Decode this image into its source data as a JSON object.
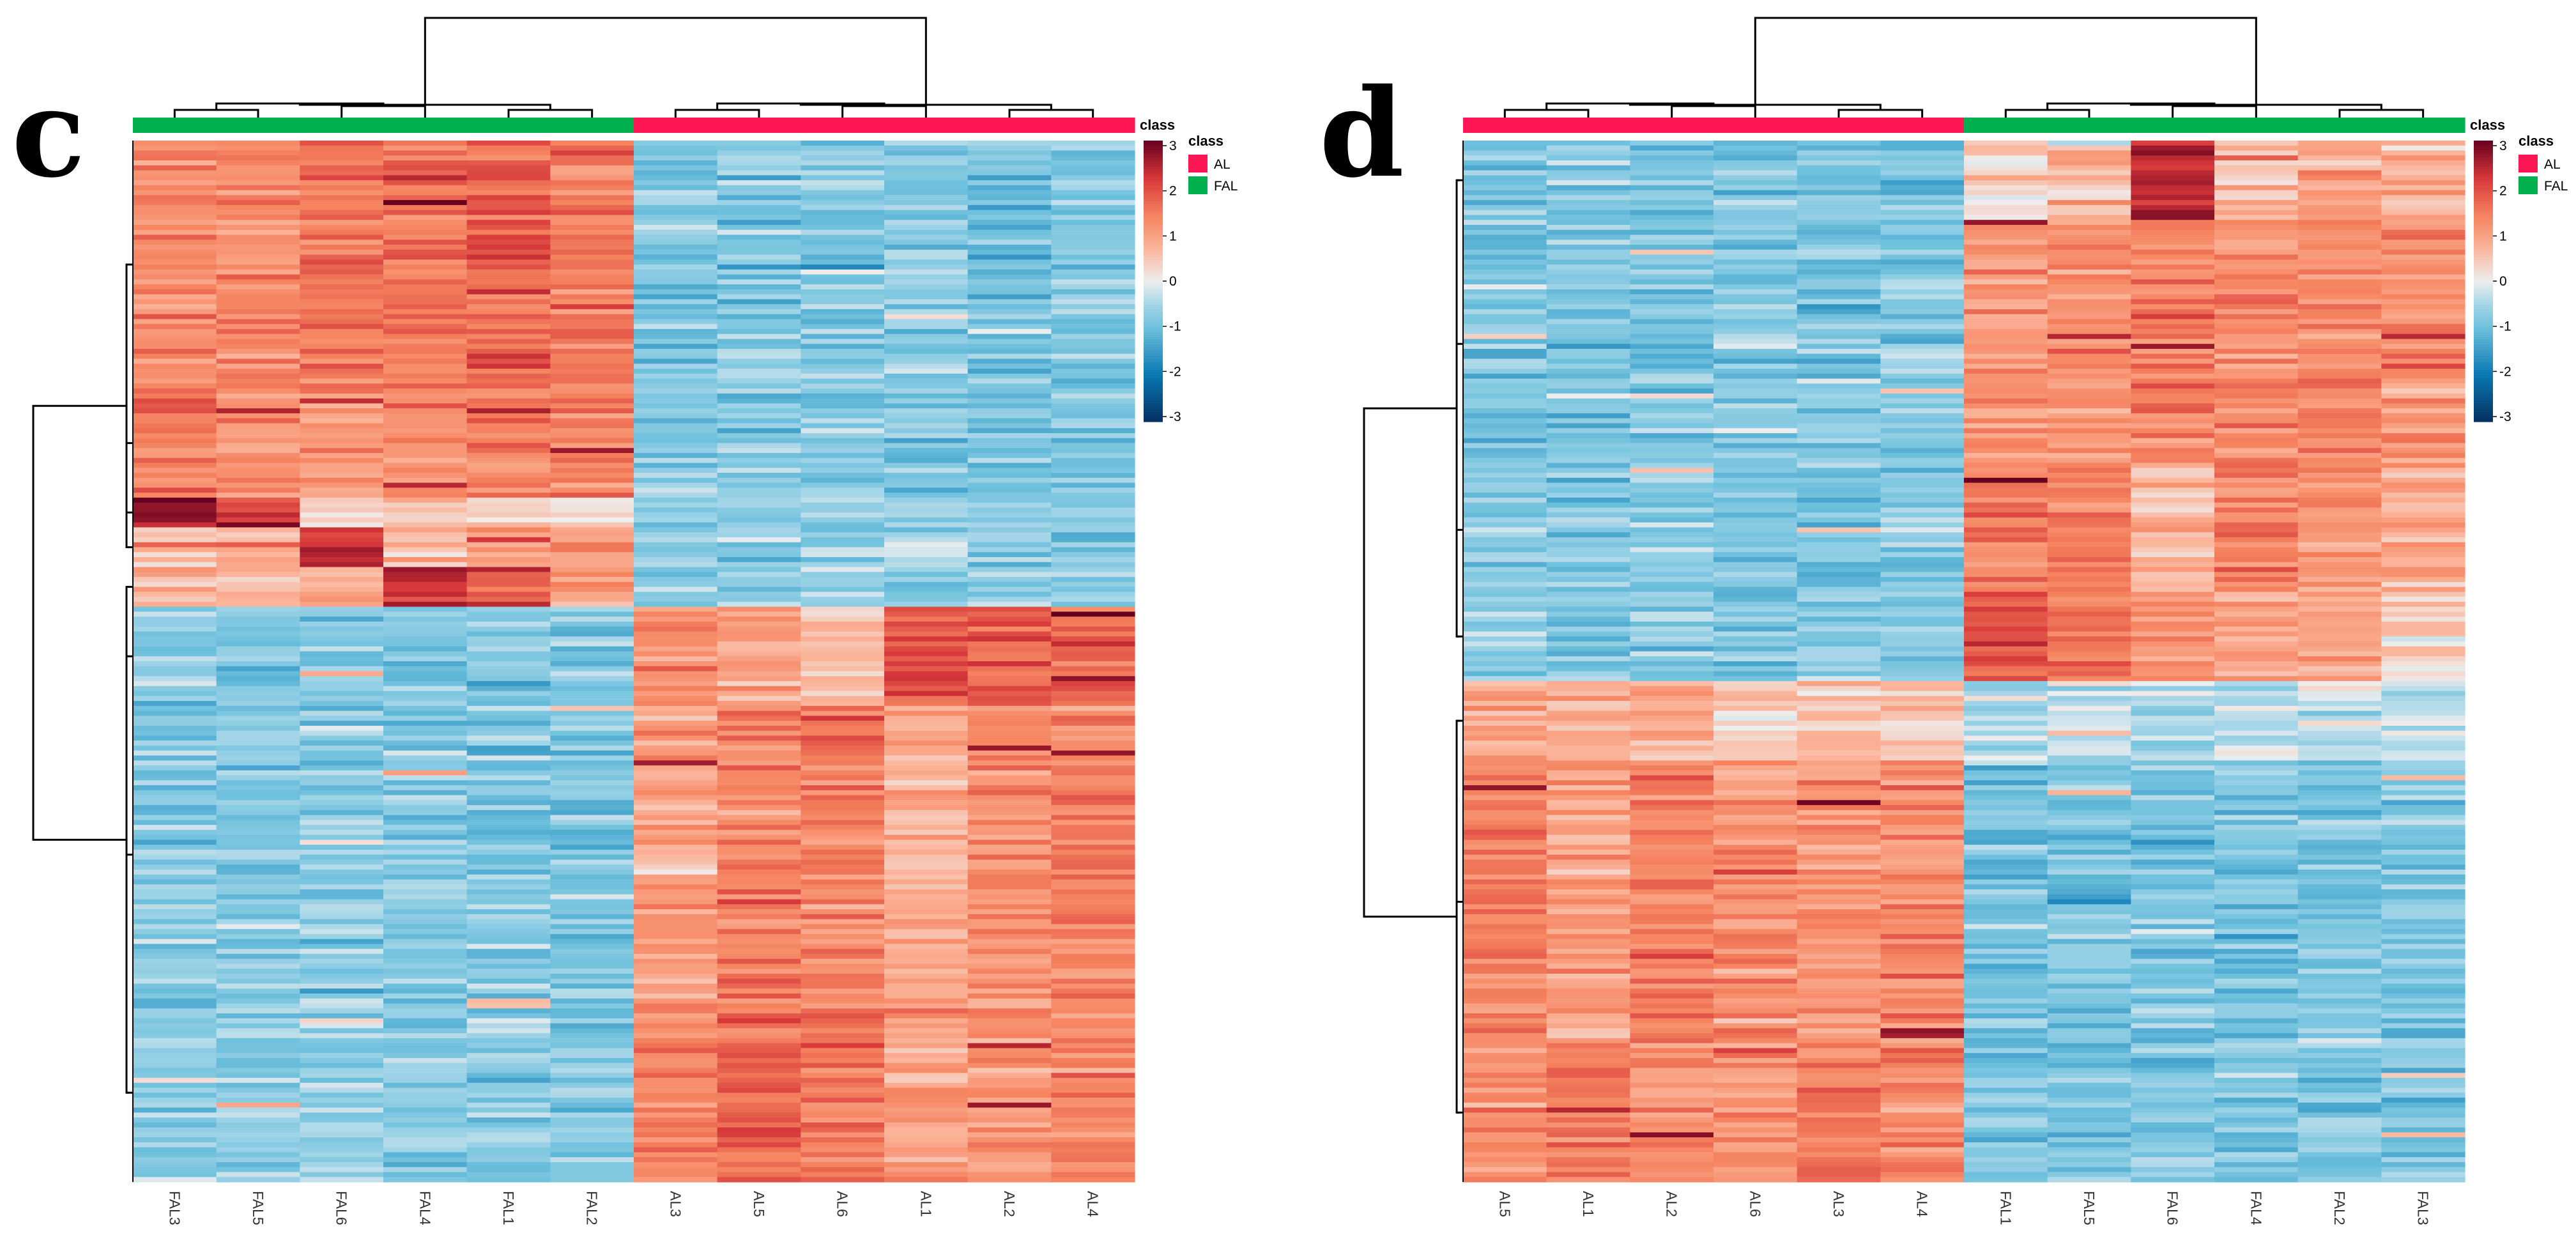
{
  "colors": {
    "AL": "#ff1654",
    "FAL": "#00b04f"
  },
  "colorscale": {
    "stops": [
      {
        "v": -3,
        "c": "#053061"
      },
      {
        "v": -2,
        "c": "#0a78b4"
      },
      {
        "v": -1,
        "c": "#6ec0dc"
      },
      {
        "v": -0.55,
        "c": "#9ed3e7"
      },
      {
        "v": 0,
        "c": "#eeeeee"
      },
      {
        "v": 0.7,
        "c": "#fbb49a"
      },
      {
        "v": 1.4,
        "c": "#f5835f"
      },
      {
        "v": 2.2,
        "c": "#d6373a"
      },
      {
        "v": 3,
        "c": "#67001f"
      }
    ]
  },
  "chart_data": [
    {
      "type": "heatmap",
      "panel": "c",
      "annotation_title": "class",
      "legend_title": "class",
      "legend": [
        {
          "label": "AL",
          "group": "AL"
        },
        {
          "label": "FAL",
          "group": "FAL"
        }
      ],
      "colorbar_ticks": [
        "3",
        "2",
        "1",
        "0",
        "-1",
        "-2",
        "-3"
      ],
      "value_range": [
        -3,
        3
      ],
      "columns": [
        {
          "label": "FAL3",
          "group": "FAL"
        },
        {
          "label": "FAL5",
          "group": "FAL"
        },
        {
          "label": "FAL6",
          "group": "FAL"
        },
        {
          "label": "FAL4",
          "group": "FAL"
        },
        {
          "label": "FAL1",
          "group": "FAL"
        },
        {
          "label": "FAL2",
          "group": "FAL"
        },
        {
          "label": "AL3",
          "group": "AL"
        },
        {
          "label": "AL5",
          "group": "AL"
        },
        {
          "label": "AL6",
          "group": "AL"
        },
        {
          "label": "AL1",
          "group": "AL"
        },
        {
          "label": "AL2",
          "group": "AL"
        },
        {
          "label": "AL4",
          "group": "AL"
        }
      ],
      "row_blocks": [
        {
          "rows": 50,
          "means": [
            1.2,
            1.3,
            1.5,
            1.5,
            1.8,
            1.5,
            -0.8,
            -0.85,
            -0.85,
            -0.8,
            -0.85,
            -0.85
          ]
        },
        {
          "rows": 22,
          "means": [
            1.4,
            1.1,
            1.1,
            1.3,
            1.4,
            1.3,
            -0.85,
            -0.8,
            -0.85,
            -0.85,
            -0.85,
            -0.85
          ]
        },
        {
          "rows": 6,
          "means": [
            2.6,
            2.2,
            0.3,
            0.3,
            0.6,
            0.4,
            -0.7,
            -0.7,
            -0.7,
            -0.7,
            -0.7,
            -0.7
          ]
        },
        {
          "rows": 8,
          "means": [
            0.7,
            0.8,
            2.5,
            0.7,
            1.0,
            0.9,
            -0.6,
            -0.7,
            -0.7,
            -0.6,
            -0.7,
            -0.7
          ]
        },
        {
          "rows": 8,
          "means": [
            0.8,
            0.6,
            0.9,
            2.3,
            1.8,
            1.2,
            -0.7,
            -0.6,
            -0.7,
            -0.7,
            -0.7,
            -0.7
          ]
        },
        {
          "rows": 20,
          "means": [
            -0.8,
            -0.8,
            -0.8,
            -0.8,
            -0.8,
            -0.8,
            1.2,
            0.8,
            0.5,
            2.0,
            1.8,
            1.8
          ]
        },
        {
          "rows": 60,
          "means": [
            -0.75,
            -0.8,
            -0.75,
            -0.8,
            -0.8,
            -0.8,
            1.0,
            1.4,
            1.4,
            0.8,
            1.2,
            1.3
          ]
        },
        {
          "rows": 36,
          "means": [
            -0.7,
            -0.7,
            -0.7,
            -0.7,
            -0.7,
            -0.75,
            1.4,
            1.7,
            1.5,
            1.0,
            1.2,
            1.3
          ]
        }
      ]
    },
    {
      "type": "heatmap",
      "panel": "d",
      "annotation_title": "class",
      "legend_title": "class",
      "legend": [
        {
          "label": "AL",
          "group": "AL"
        },
        {
          "label": "FAL",
          "group": "FAL"
        }
      ],
      "colorbar_ticks": [
        "3",
        "2",
        "1",
        "0",
        "-1",
        "-2",
        "-3"
      ],
      "value_range": [
        -3,
        3
      ],
      "columns": [
        {
          "label": "AL5",
          "group": "AL"
        },
        {
          "label": "AL1",
          "group": "AL"
        },
        {
          "label": "AL2",
          "group": "AL"
        },
        {
          "label": "AL6",
          "group": "AL"
        },
        {
          "label": "AL3",
          "group": "AL"
        },
        {
          "label": "AL4",
          "group": "AL"
        },
        {
          "label": "FAL1",
          "group": "FAL"
        },
        {
          "label": "FAL5",
          "group": "FAL"
        },
        {
          "label": "FAL6",
          "group": "FAL"
        },
        {
          "label": "FAL4",
          "group": "FAL"
        },
        {
          "label": "FAL2",
          "group": "FAL"
        },
        {
          "label": "FAL3",
          "group": "FAL"
        }
      ],
      "row_blocks": [
        {
          "rows": 16,
          "means": [
            -0.85,
            -0.8,
            -0.85,
            -0.85,
            -0.85,
            -0.85,
            0.3,
            0.6,
            2.4,
            0.6,
            0.9,
            0.7
          ]
        },
        {
          "rows": 50,
          "means": [
            -0.85,
            -0.85,
            -0.85,
            -0.85,
            -0.85,
            -0.85,
            1.1,
            1.2,
            1.4,
            1.3,
            1.3,
            1.2
          ]
        },
        {
          "rows": 25,
          "means": [
            -0.8,
            -0.8,
            -0.8,
            -0.85,
            -0.85,
            -0.85,
            1.6,
            1.4,
            0.6,
            1.4,
            1.1,
            0.9
          ]
        },
        {
          "rows": 18,
          "means": [
            -0.7,
            -0.75,
            -0.75,
            -0.75,
            -0.7,
            -0.75,
            2.0,
            1.5,
            1.2,
            0.9,
            0.9,
            0.3
          ]
        },
        {
          "rows": 16,
          "means": [
            0.9,
            0.8,
            0.8,
            0.4,
            0.6,
            0.5,
            -0.4,
            -0.3,
            -0.4,
            -0.3,
            -0.2,
            -0.4
          ]
        },
        {
          "rows": 57,
          "means": [
            1.3,
            1.0,
            1.4,
            1.2,
            1.1,
            1.3,
            -0.85,
            -0.85,
            -0.85,
            -0.85,
            -0.85,
            -0.85
          ]
        },
        {
          "rows": 28,
          "means": [
            1.2,
            1.5,
            1.2,
            1.1,
            1.5,
            1.3,
            -0.8,
            -0.85,
            -0.85,
            -0.85,
            -0.8,
            -0.8
          ]
        }
      ]
    }
  ]
}
